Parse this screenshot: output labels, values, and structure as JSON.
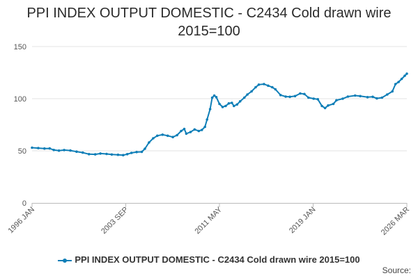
{
  "chart_data": {
    "type": "line",
    "title": "PPI INDEX OUTPUT DOMESTIC - C2434 Cold drawn wire",
    "subtitle": "2015=100",
    "source_label": "Source:",
    "ylim": [
      0,
      150
    ],
    "y_ticks": [
      0,
      50,
      100,
      150
    ],
    "x_tick_labels": [
      "1996 JAN",
      "2003 SEP",
      "2011 MAY",
      "2019 JAN",
      "2026 MAR"
    ],
    "x_range": [
      "1996-01",
      "2026-03"
    ],
    "grid": true,
    "legend_position": "bottom",
    "line_color": "#0e7eb7",
    "series": [
      {
        "name": "PPI INDEX OUTPUT DOMESTIC - C2434 Cold drawn wire 2015=100",
        "points": [
          [
            "1996-01",
            53
          ],
          [
            "1996-07",
            52.6
          ],
          [
            "1997-01",
            52.2
          ],
          [
            "1997-06",
            52.3
          ],
          [
            "1997-10",
            50.8
          ],
          [
            "1998-03",
            50.2
          ],
          [
            "1998-08",
            50.7
          ],
          [
            "1999-02",
            50.3
          ],
          [
            "1999-08",
            49.2
          ],
          [
            "2000-02",
            48.3
          ],
          [
            "2000-08",
            46.8
          ],
          [
            "2001-02",
            46.6
          ],
          [
            "2001-07",
            47.4
          ],
          [
            "2002-01",
            47
          ],
          [
            "2002-06",
            46.5
          ],
          [
            "2002-12",
            46.2
          ],
          [
            "2003-05",
            45.9
          ],
          [
            "2003-09",
            46.8
          ],
          [
            "2004-01",
            48
          ],
          [
            "2004-06",
            48.8
          ],
          [
            "2004-11",
            49
          ],
          [
            "2005-02",
            52
          ],
          [
            "2005-06",
            58
          ],
          [
            "2005-10",
            62
          ],
          [
            "2006-02",
            64.5
          ],
          [
            "2006-07",
            65.5
          ],
          [
            "2006-12",
            64.5
          ],
          [
            "2007-05",
            63.2
          ],
          [
            "2007-09",
            65
          ],
          [
            "2008-01",
            69
          ],
          [
            "2008-04",
            71
          ],
          [
            "2008-06",
            66.5
          ],
          [
            "2008-10",
            68
          ],
          [
            "2009-02",
            70.5
          ],
          [
            "2009-06",
            69
          ],
          [
            "2009-09",
            70
          ],
          [
            "2009-12",
            73
          ],
          [
            "2010-02",
            80
          ],
          [
            "2010-05",
            90
          ],
          [
            "2010-07",
            101
          ],
          [
            "2010-09",
            103
          ],
          [
            "2010-11",
            101.5
          ],
          [
            "2011-02",
            95
          ],
          [
            "2011-05",
            92
          ],
          [
            "2011-08",
            93
          ],
          [
            "2011-11",
            95.5
          ],
          [
            "2012-02",
            96
          ],
          [
            "2012-04",
            93
          ],
          [
            "2012-07",
            94.5
          ],
          [
            "2012-10",
            97.5
          ],
          [
            "2013-02",
            101
          ],
          [
            "2013-05",
            104
          ],
          [
            "2013-09",
            107
          ],
          [
            "2014-01",
            111
          ],
          [
            "2014-04",
            113.5
          ],
          [
            "2014-09",
            114
          ],
          [
            "2015-01",
            112.5
          ],
          [
            "2015-05",
            111
          ],
          [
            "2015-08",
            109
          ],
          [
            "2016-01",
            103.5
          ],
          [
            "2016-06",
            102
          ],
          [
            "2016-10",
            101.8
          ],
          [
            "2017-03",
            102.5
          ],
          [
            "2017-08",
            105
          ],
          [
            "2017-12",
            104.5
          ],
          [
            "2018-04",
            101
          ],
          [
            "2018-09",
            100
          ],
          [
            "2019-01",
            99.5
          ],
          [
            "2019-05",
            93
          ],
          [
            "2019-08",
            91
          ],
          [
            "2019-11",
            93.5
          ],
          [
            "2020-04",
            95
          ],
          [
            "2020-07",
            98.5
          ],
          [
            "2021-01",
            100
          ],
          [
            "2021-06",
            102
          ],
          [
            "2022-01",
            103
          ],
          [
            "2022-06",
            102.5
          ],
          [
            "2023-01",
            101.5
          ],
          [
            "2023-06",
            101.8
          ],
          [
            "2023-10",
            100.3
          ],
          [
            "2024-03",
            101
          ],
          [
            "2024-08",
            104
          ],
          [
            "2025-01",
            107
          ],
          [
            "2025-04",
            114
          ],
          [
            "2025-07",
            116
          ],
          [
            "2025-10",
            119
          ],
          [
            "2026-01",
            122
          ],
          [
            "2026-03",
            124
          ]
        ]
      }
    ]
  }
}
